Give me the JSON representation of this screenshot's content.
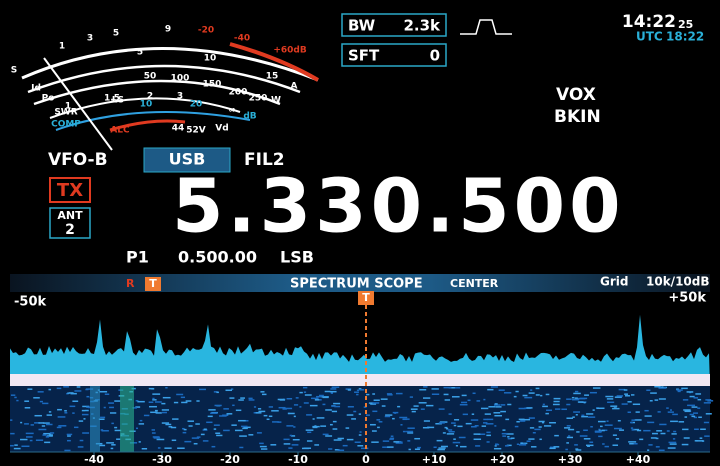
{
  "display": {
    "bw_label": "BW",
    "bw_value": "2.3k",
    "sft_label": "SFT",
    "sft_value": "0",
    "clock": "14:22",
    "clock_seconds": "25",
    "utc_label": "UTC",
    "utc_time": "18:22",
    "vox": "VOX",
    "bkin": "BKIN",
    "vfo": "VFO-B",
    "mode": "USB",
    "filter": "FIL2",
    "tx": "TX",
    "ant_label": "ANT",
    "ant_value": "2",
    "frequency": "5.330.500",
    "memo_label": "P1",
    "memo_freq": "0.500.00",
    "memo_mode": "LSB",
    "meter": {
      "s_scale": [
        "S",
        "1",
        "3",
        "5",
        "9",
        "-20",
        "-40",
        "+60dB"
      ],
      "id_scale": [
        "5",
        "10",
        "15",
        "A"
      ],
      "po_scale": [
        "50",
        "100",
        "150",
        "200",
        "250",
        "W"
      ],
      "swr_scale": [
        "1",
        "1.5",
        "2",
        "3",
        "∞"
      ],
      "comp_scale": [
        "10",
        "20",
        "dB"
      ],
      "side_labels": [
        "Id",
        "Po",
        "SWR",
        "COMP",
        "LS",
        "ALC",
        "44",
        "52V",
        "Vd"
      ]
    },
    "scope": {
      "r_marker": "R",
      "t_marker": "T",
      "title": "SPECTRUM SCOPE",
      "mode": "CENTER",
      "grid_label": "Grid",
      "grid_value": "10k/10dB",
      "left_span": "-50k",
      "right_span": "+50k",
      "center_marker": "T",
      "axis_labels": [
        "-40",
        "-30",
        "-20",
        "-10",
        "0",
        "+10",
        "+20",
        "+30",
        "+40"
      ]
    }
  }
}
